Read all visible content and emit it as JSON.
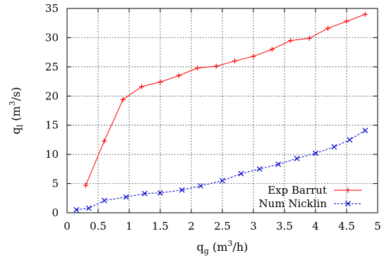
{
  "chart_data": {
    "type": "line",
    "xlabel": {
      "base": "q",
      "sub": "g",
      "open": " (m",
      "sup": "3",
      "close": "/h)"
    },
    "ylabel": {
      "base": "q",
      "sub": "l",
      "open": " (m",
      "sup": "3",
      "close": "/s)"
    },
    "xlim": [
      0,
      5
    ],
    "ylim": [
      0,
      35
    ],
    "xticks": [
      "0",
      "0.5",
      "1",
      "1.5",
      "2",
      "2.5",
      "3",
      "3.5",
      "4",
      "4.5",
      "5"
    ],
    "yticks": [
      "0",
      "5",
      "10",
      "15",
      "20",
      "25",
      "30",
      "35"
    ],
    "grid": true,
    "legend_position": "bottom-right",
    "series": [
      {
        "name": "Exp Barrut",
        "color": "#ff0000",
        "marker": "plus",
        "dash": "solid",
        "x": [
          0.3,
          0.6,
          0.9,
          1.2,
          1.5,
          1.8,
          2.1,
          2.4,
          2.7,
          3.0,
          3.3,
          3.6,
          3.9,
          4.2,
          4.5,
          4.8
        ],
        "y": [
          4.7,
          12.3,
          19.4,
          21.6,
          22.4,
          23.5,
          24.8,
          25.1,
          26.0,
          26.8,
          28.0,
          29.5,
          29.9,
          31.6,
          32.8,
          34.0
        ]
      },
      {
        "name": "Num Nicklin",
        "color": "#0000cc",
        "marker": "x",
        "dash": "dashed",
        "x": [
          0.15,
          0.35,
          0.6,
          0.95,
          1.25,
          1.5,
          1.85,
          2.15,
          2.5,
          2.8,
          3.1,
          3.4,
          3.7,
          4.0,
          4.3,
          4.55,
          4.8
        ],
        "y": [
          0.5,
          0.8,
          2.1,
          2.7,
          3.3,
          3.4,
          3.9,
          4.6,
          5.5,
          6.7,
          7.5,
          8.3,
          9.3,
          10.2,
          11.3,
          12.5,
          14.1
        ]
      }
    ]
  }
}
